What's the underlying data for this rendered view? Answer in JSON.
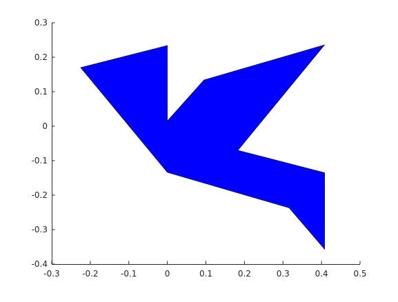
{
  "chart_data": {
    "type": "area",
    "title": "",
    "xlabel": "",
    "ylabel": "",
    "xlim": [
      -0.3,
      0.5
    ],
    "ylim": [
      -0.4,
      0.3
    ],
    "grid": false,
    "xticks": [
      -0.3,
      -0.2,
      -0.1,
      0,
      0.1,
      0.2,
      0.3,
      0.4,
      0.5
    ],
    "yticks": [
      -0.4,
      -0.3,
      -0.2,
      -0.1,
      0,
      0.1,
      0.2,
      0.3
    ],
    "xtick_labels": [
      "-0.3",
      "-0.2",
      "-0.1",
      "0",
      "0.1",
      "0.2",
      "0.3",
      "0.4",
      "0.5"
    ],
    "ytick_labels": [
      "-0.4",
      "-0.3",
      "-0.2",
      "-0.1",
      "0",
      "0.1",
      "0.2",
      "0.3"
    ],
    "series": [
      {
        "fill_color": "#0000ff",
        "edge_color": "#000000",
        "x": [
          -0.225,
          0.0,
          0.0,
          0.095,
          0.408,
          0.183,
          0.408,
          0.408,
          0.316,
          0.0
        ],
        "y": [
          0.17,
          0.234,
          0.015,
          0.134,
          0.236,
          -0.07,
          -0.135,
          -0.357,
          -0.237,
          -0.134
        ]
      }
    ]
  }
}
